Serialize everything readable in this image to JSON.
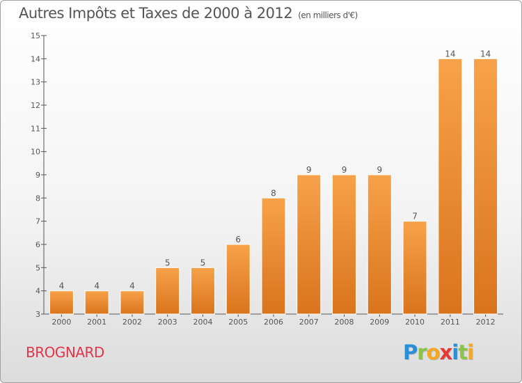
{
  "title": "Autres Impôts et Taxes de 2000 à 2012",
  "subtitle": "(en milliers d'€)",
  "commune": "BROGNARD",
  "logo": {
    "letters": [
      "P",
      "r",
      "o",
      "x",
      "i",
      "t",
      "i"
    ],
    "colors": [
      "#2b8fd6",
      "#8bc34a",
      "#f5a623",
      "#e53935",
      "#2b8fd6",
      "#8bc34a",
      "#f5a623"
    ]
  },
  "colors": {
    "bar_light": "#f7a24a",
    "bar_dark": "#d9741c",
    "axis": "#555555"
  },
  "chart_data": {
    "type": "bar",
    "categories": [
      "2000",
      "2001",
      "2002",
      "2003",
      "2004",
      "2005",
      "2006",
      "2007",
      "2008",
      "2009",
      "2010",
      "2011",
      "2012"
    ],
    "values": [
      4,
      4,
      4,
      5,
      5,
      6,
      8,
      9,
      9,
      9,
      7,
      14,
      14
    ],
    "ylim": [
      3,
      15
    ],
    "yticks": [
      3,
      4,
      5,
      6,
      7,
      8,
      9,
      10,
      11,
      12,
      13,
      14,
      15
    ],
    "xlabel": "",
    "ylabel": "",
    "grid": false
  }
}
